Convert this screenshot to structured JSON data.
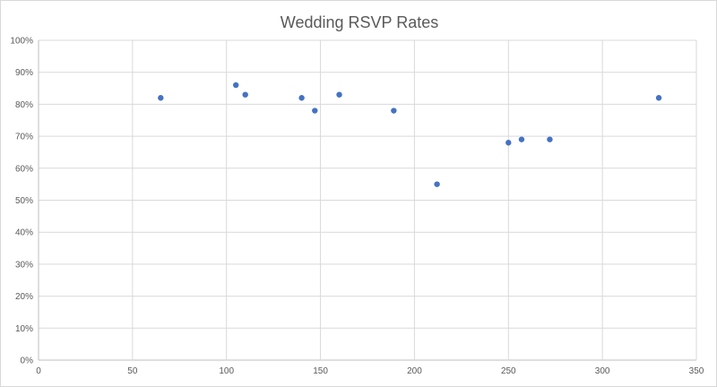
{
  "chart_data": {
    "type": "scatter",
    "title": "Wedding RSVP Rates",
    "xlabel": "",
    "ylabel": "",
    "xlim": [
      0,
      350
    ],
    "ylim": [
      0,
      1
    ],
    "x_ticks": [
      "0",
      "50",
      "100",
      "150",
      "200",
      "250",
      "300",
      "350"
    ],
    "y_ticks": [
      "0%",
      "10%",
      "20%",
      "30%",
      "40%",
      "50%",
      "60%",
      "70%",
      "80%",
      "90%",
      "100%"
    ],
    "grid": true,
    "legend": "none",
    "color": "#4472c4",
    "series": [
      {
        "points": [
          {
            "x": 65,
            "y": 0.82
          },
          {
            "x": 105,
            "y": 0.86
          },
          {
            "x": 110,
            "y": 0.83
          },
          {
            "x": 140,
            "y": 0.82
          },
          {
            "x": 147,
            "y": 0.78
          },
          {
            "x": 160,
            "y": 0.83
          },
          {
            "x": 189,
            "y": 0.78
          },
          {
            "x": 212,
            "y": 0.55
          },
          {
            "x": 250,
            "y": 0.68
          },
          {
            "x": 257,
            "y": 0.69
          },
          {
            "x": 272,
            "y": 0.69
          },
          {
            "x": 330,
            "y": 0.82
          }
        ]
      }
    ]
  }
}
